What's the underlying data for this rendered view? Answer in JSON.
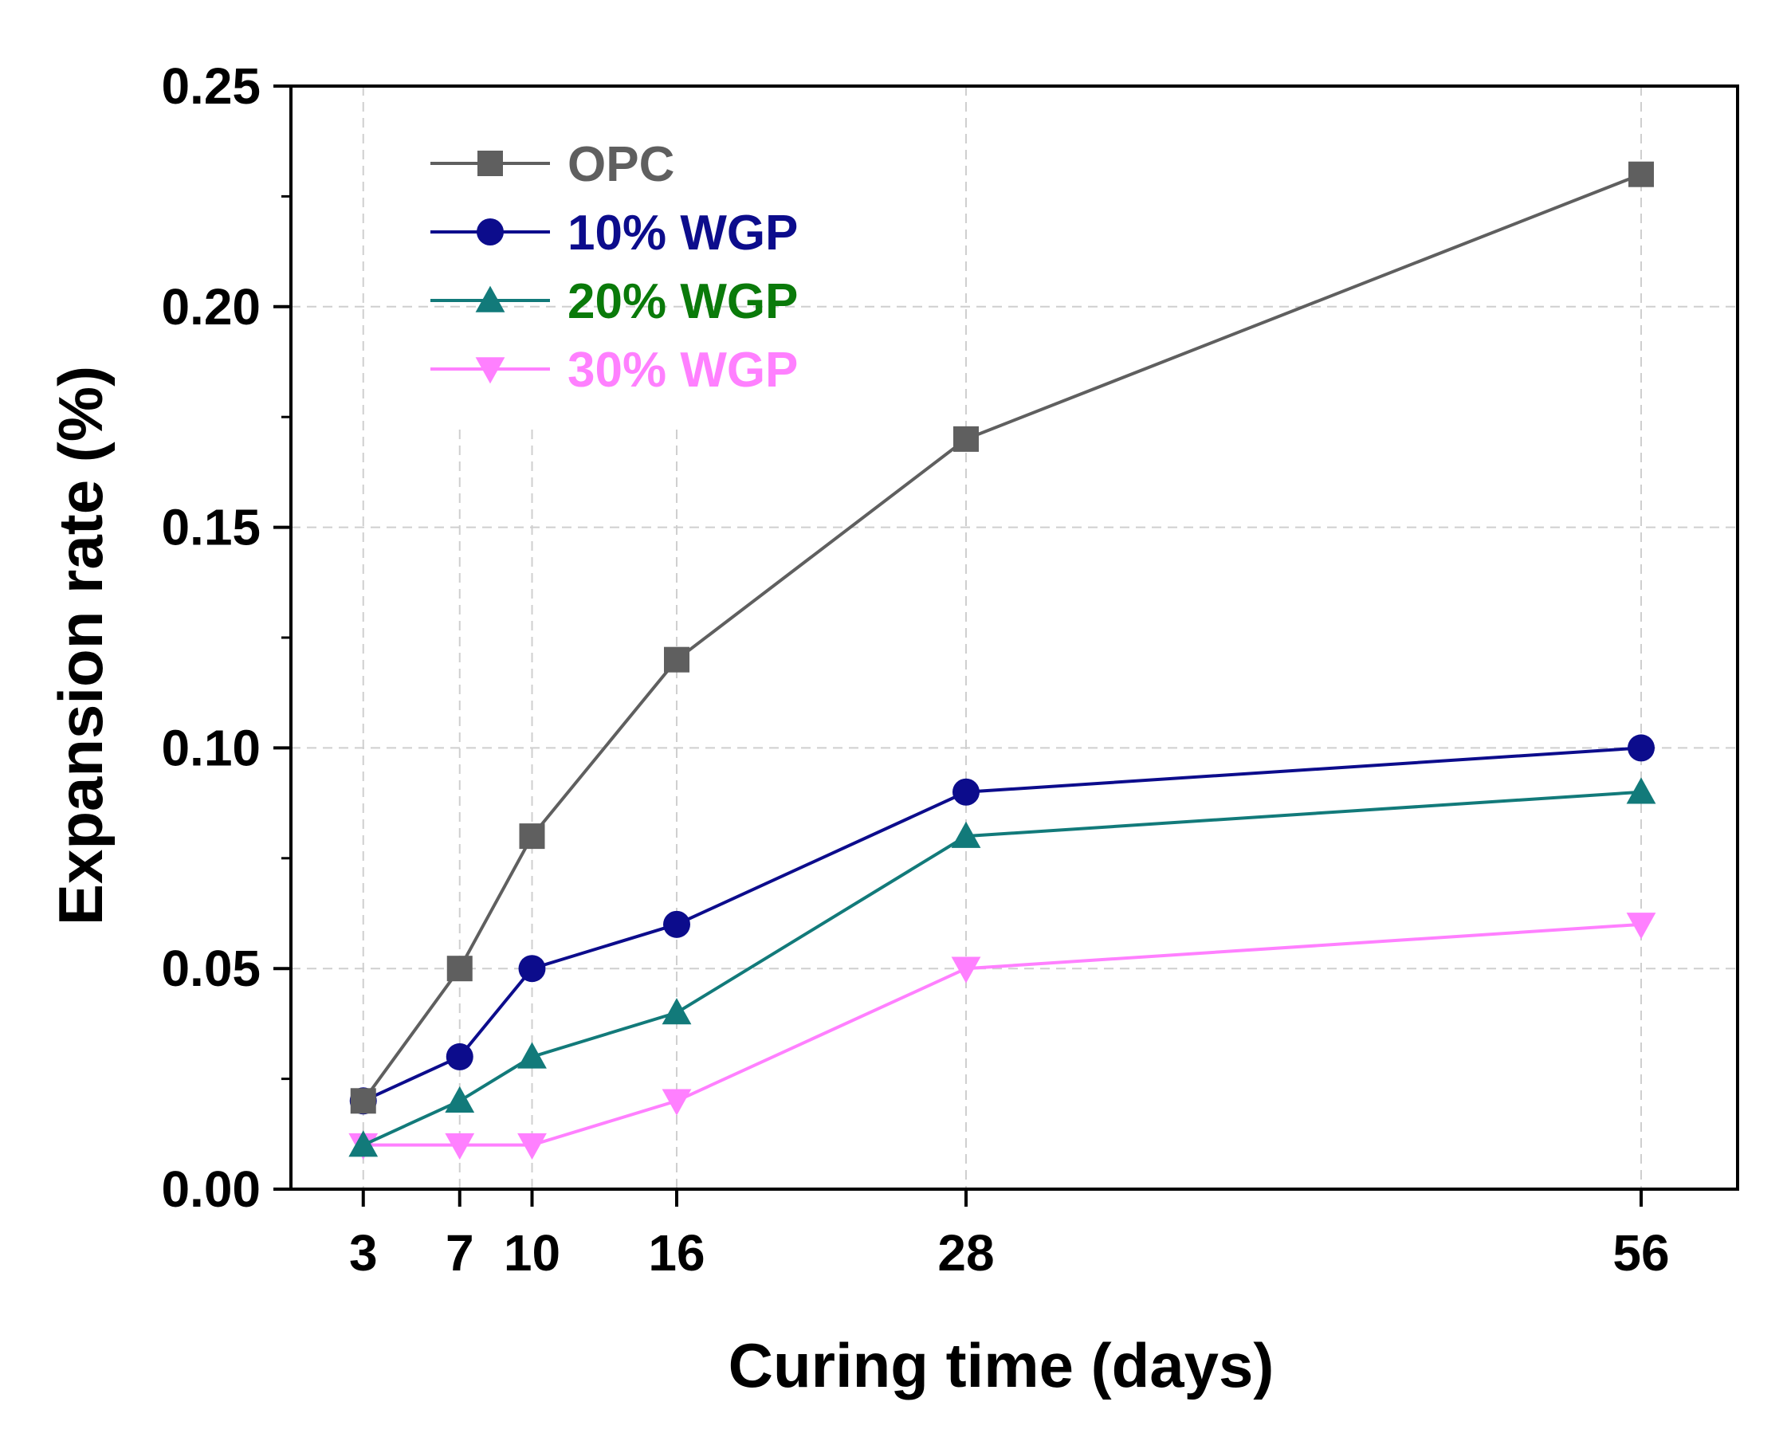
{
  "chart_data": {
    "type": "line",
    "title": "",
    "xlabel": "Curing time (days)",
    "ylabel": "Expansion rate (%)",
    "x": [
      3,
      7,
      10,
      16,
      28,
      56
    ],
    "x_tick_labels": [
      "3",
      "7",
      "10",
      "16",
      "28",
      "56"
    ],
    "xlim": [
      0,
      60
    ],
    "ylim": [
      0.0,
      0.25
    ],
    "y_ticks": [
      0.0,
      0.05,
      0.1,
      0.15,
      0.2,
      0.25
    ],
    "y_tick_labels": [
      "0.00",
      "0.05",
      "0.10",
      "0.15",
      "0.20",
      "0.25"
    ],
    "grid": true,
    "legend_position": "top-left",
    "series": [
      {
        "name": "OPC",
        "values": [
          0.02,
          0.05,
          0.08,
          0.12,
          0.17,
          0.23
        ],
        "color": "#5f5f5f",
        "label_color": "#5f5f5f",
        "marker": "square"
      },
      {
        "name": "10% WGP",
        "values": [
          0.02,
          0.03,
          0.05,
          0.06,
          0.09,
          0.1
        ],
        "color": "#0c0c8c",
        "label_color": "#0c0c8c",
        "marker": "circle"
      },
      {
        "name": "20% WGP",
        "values": [
          0.01,
          0.02,
          0.03,
          0.04,
          0.08,
          0.09
        ],
        "color": "#127a7a",
        "label_color": "#0a7a0a",
        "marker": "triangle-up"
      },
      {
        "name": "30% WGP",
        "values": [
          0.01,
          0.01,
          0.01,
          0.02,
          0.05,
          0.06
        ],
        "color": "#ff80ff",
        "label_color": "#ff80ff",
        "marker": "triangle-down"
      }
    ]
  }
}
